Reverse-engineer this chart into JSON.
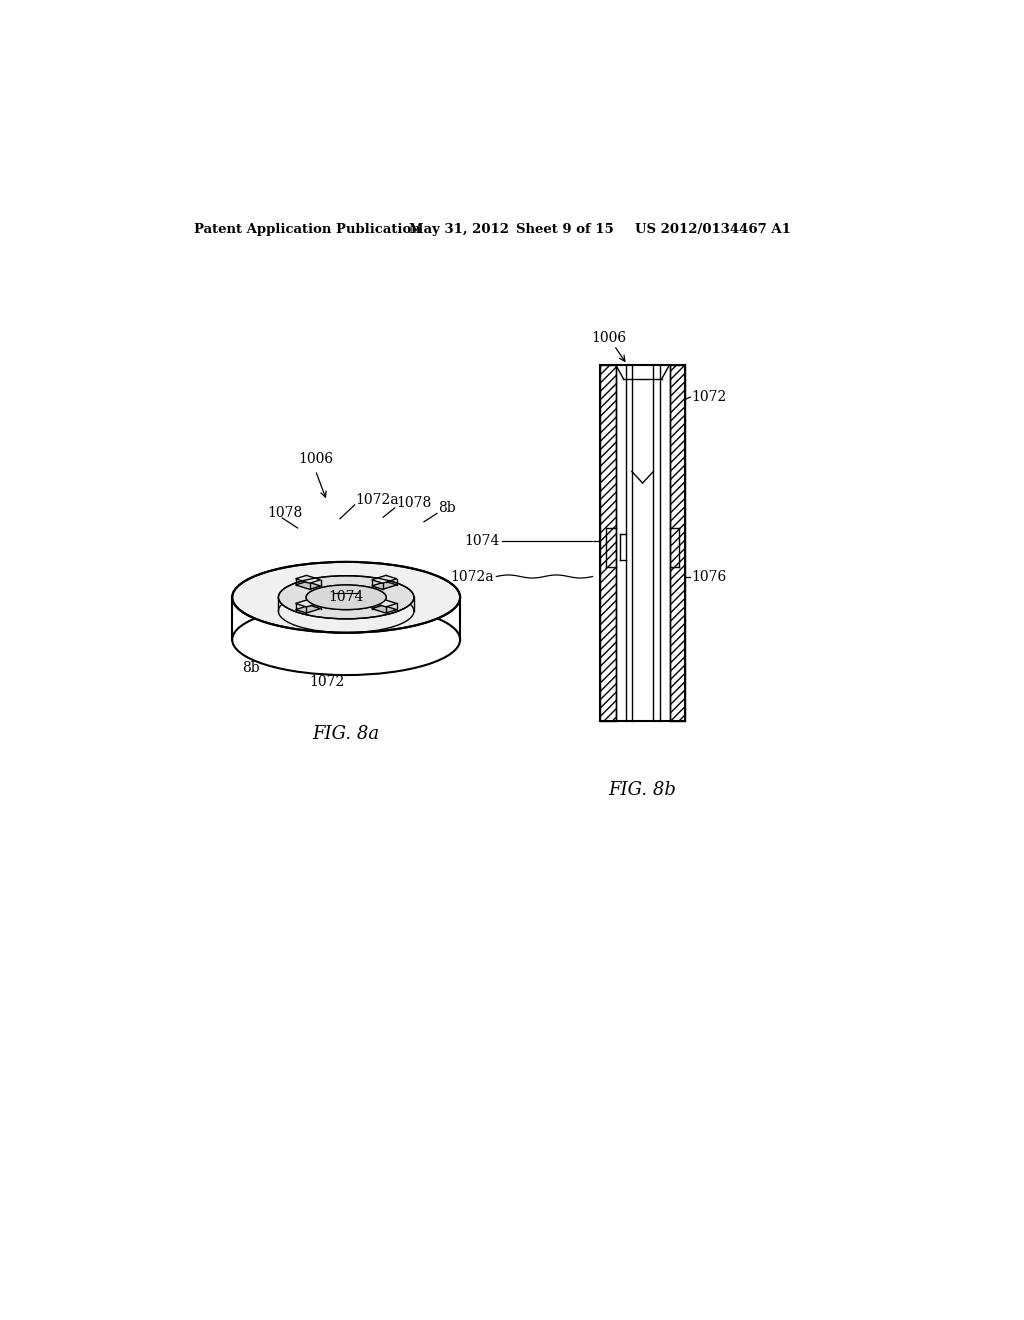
{
  "background_color": "#ffffff",
  "header_text": "Patent Application Publication",
  "header_date": "May 31, 2012",
  "header_sheet": "Sheet 9 of 15",
  "header_patent": "US 2012/0134467 A1",
  "fig8a_title": "FIG. 8a",
  "fig8b_title": "FIG. 8b"
}
